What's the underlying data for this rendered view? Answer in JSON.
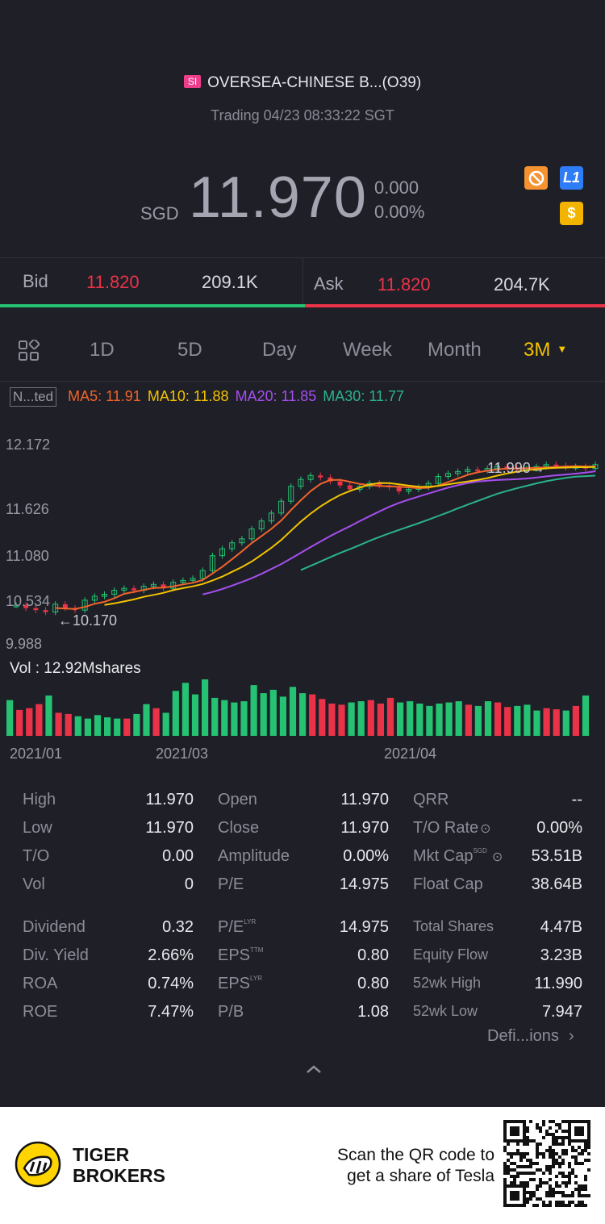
{
  "header": {
    "market_badge": "SI",
    "stock_name": "OVERSEA-CHINESE B...(O39)",
    "trading_status": "Trading 04/23 08:33:22 SGT",
    "currency": "SGD",
    "price": "11.970",
    "change": "0.000",
    "change_pct": "0.00%",
    "icons": {
      "no_sign": "prohibited-icon",
      "level": "L1",
      "dollar": "$"
    },
    "colors": {
      "orange": "#f59331",
      "blue": "#2e7cf6",
      "yellow": "#f3b400"
    }
  },
  "bid_ask": {
    "bid_label": "Bid",
    "bid_price": "11.820",
    "bid_vol": "209.1K",
    "ask_label": "Ask",
    "ask_price": "11.820",
    "ask_vol": "204.7K",
    "colors": {
      "bid": "#24c272",
      "ask": "#ea3348"
    }
  },
  "tabs": {
    "grid_icon": "grid-icon",
    "items": [
      "1D",
      "5D",
      "Day",
      "Week",
      "Month",
      "3M"
    ],
    "active": "3M"
  },
  "indicators": {
    "mode": "N...ted",
    "ma5": "MA5: 11.91",
    "ma10": "MA10: 11.88",
    "ma20": "MA20: 11.85",
    "ma30": "MA30: 11.77",
    "colors": {
      "ma5": "#f0642a",
      "ma10": "#f3c300",
      "ma20": "#a54ff0",
      "ma30": "#2bb38d"
    }
  },
  "chart_data": {
    "type": "candlestick",
    "y_labels": [
      "12.172",
      "11.626",
      "11.080",
      "10.534",
      "9.988"
    ],
    "ylim": [
      9.988,
      12.172
    ],
    "x_labels": [
      "2021/01",
      "2021/03",
      "2021/04"
    ],
    "high_annotation": "11.990",
    "low_annotation": "10.170",
    "volume_label": "Vol  : 12.92Mshares",
    "closes": [
      10.55,
      10.52,
      10.5,
      10.48,
      10.56,
      10.52,
      10.5,
      10.6,
      10.64,
      10.66,
      10.7,
      10.72,
      10.7,
      10.74,
      10.76,
      10.72,
      10.78,
      10.8,
      10.82,
      10.9,
      11.05,
      11.12,
      11.18,
      11.22,
      11.32,
      11.4,
      11.48,
      11.6,
      11.75,
      11.82,
      11.86,
      11.84,
      11.8,
      11.76,
      11.72,
      11.75,
      11.78,
      11.76,
      11.74,
      11.7,
      11.72,
      11.74,
      11.78,
      11.85,
      11.88,
      11.9,
      11.92,
      11.91,
      11.93,
      11.95,
      11.94,
      11.92,
      11.93,
      11.95,
      11.97,
      11.96,
      11.94,
      11.95,
      11.93,
      11.97
    ],
    "volumes": [
      62,
      45,
      48,
      55,
      70,
      40,
      38,
      34,
      30,
      36,
      32,
      30,
      30,
      38,
      55,
      48,
      40,
      78,
      92,
      72,
      98,
      66,
      62,
      58,
      60,
      88,
      74,
      80,
      68,
      85,
      74,
      72,
      64,
      56,
      54,
      58,
      60,
      62,
      56,
      66,
      58,
      60,
      56,
      52,
      56,
      58,
      60,
      54,
      52,
      60,
      58,
      50,
      52,
      54,
      44,
      48,
      46,
      44,
      52,
      70
    ]
  },
  "stats": {
    "col1": [
      {
        "label": "High",
        "value": "11.970"
      },
      {
        "label": "Low",
        "value": "11.970"
      },
      {
        "label": "T/O",
        "value": "0.00"
      },
      {
        "label": "Vol",
        "value": "0"
      },
      {
        "label": "Dividend",
        "value": "0.32"
      },
      {
        "label": "Div. Yield",
        "value": "2.66%"
      },
      {
        "label": "ROA",
        "value": "0.74%"
      },
      {
        "label": "ROE",
        "value": "7.47%"
      }
    ],
    "col2": [
      {
        "label": "Open",
        "value": "11.970"
      },
      {
        "label": "Close",
        "value": "11.970"
      },
      {
        "label": "Amplitude",
        "value": "0.00%"
      },
      {
        "label": "P/E",
        "value": "14.975"
      },
      {
        "label": "P/E",
        "sup": "LYR",
        "value": "14.975"
      },
      {
        "label": "EPS",
        "sup": "TTM",
        "value": "0.80"
      },
      {
        "label": "EPS",
        "sup": "LYR",
        "value": "0.80"
      },
      {
        "label": "P/B",
        "value": "1.08"
      }
    ],
    "col3": [
      {
        "label": "QRR",
        "value": "--"
      },
      {
        "label": "T/O Rate",
        "value": "0.00%"
      },
      {
        "label": "Mkt Cap",
        "sup": "SGD",
        "value": "53.51B"
      },
      {
        "label": "Float Cap",
        "value": "38.64B"
      },
      {
        "label": "Total Shares",
        "value": "4.47B"
      },
      {
        "label": "Equity Flow",
        "value": "3.23B"
      },
      {
        "label": "52wk High",
        "value": "11.990"
      },
      {
        "label": "52wk Low",
        "value": "7.947"
      }
    ],
    "definitions_link": "Defi...ions"
  },
  "footer": {
    "brand_line1": "TIGER",
    "brand_line2": "BROKERS",
    "promo_line1": "Scan the QR code to",
    "promo_line2": "get a share of Tesla"
  }
}
